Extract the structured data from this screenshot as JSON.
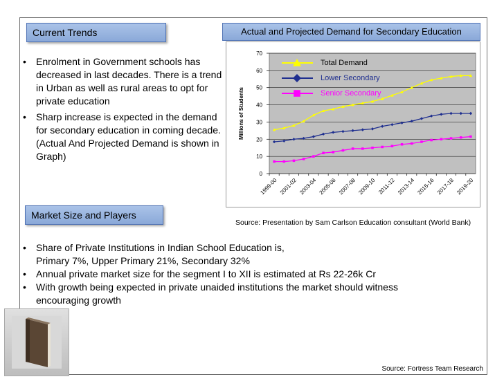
{
  "trends": {
    "label": "Current Trends",
    "bullets": [
      "Enrolment in Government schools has decreased in last decades. There is a trend in Urban as well as rural areas to opt for private education",
      "Sharp increase is expected in the demand for secondary education in coming decade.  (Actual And Projected Demand is shown in Graph)"
    ]
  },
  "market": {
    "label": "Market Size and Players",
    "bullets": [
      [
        "Share of Private Institutions in Indian School Education is,",
        "Primary 7%, Upper Primary 21%,  Secondary 32%"
      ],
      [
        "Annual private market size for the segment I to XII  is estimated at Rs 22-26k Cr"
      ],
      [
        "With growth being expected in private unaided institutions the market should witness",
        "encouraging growth"
      ]
    ]
  },
  "chart_heading": "Actual and Projected Demand for Secondary Education",
  "chart_source": "Source: Presentation by Sam Carlson Education consultant (World Bank)",
  "footer_source": "Source: Fortress Team Research",
  "icons": {
    "book": "book-icon"
  },
  "colors": {
    "label_bg": "#9bb7e2",
    "total": "#ffff00",
    "lower": "#1f2f8f",
    "senior": "#ff00ff",
    "plot_bg": "#c0c0c0"
  },
  "chart_data": {
    "type": "line",
    "title": "",
    "xlabel": "",
    "ylabel": "Millions of Students",
    "ylim": [
      0,
      70
    ],
    "yticks": [
      0,
      10,
      20,
      30,
      40,
      50,
      60,
      70
    ],
    "tick_labels": [
      "1999-00",
      "2001-02",
      "2003-04",
      "2005-06",
      "2007-08",
      "2009-10",
      "2011-12",
      "2013-14",
      "2015-16",
      "2017-18",
      "2019-20"
    ],
    "x": [
      "1999-00",
      "2000-01",
      "2001-02",
      "2002-03",
      "2003-04",
      "2004-05",
      "2005-06",
      "2006-07",
      "2007-08",
      "2008-09",
      "2009-10",
      "2010-11",
      "2011-12",
      "2012-13",
      "2013-14",
      "2014-15",
      "2015-16",
      "2016-17",
      "2017-18",
      "2018-19",
      "2019-20"
    ],
    "series": [
      {
        "name": "Total Demand",
        "color": "#ffff00",
        "marker": "triangle",
        "values": [
          25.5,
          26.5,
          28,
          30.5,
          34,
          36.5,
          37.5,
          39,
          40,
          41,
          42,
          43.5,
          45.5,
          47.5,
          50,
          52.5,
          54.5,
          55.5,
          56.5,
          57,
          57
        ]
      },
      {
        "name": "Lower Secondary",
        "color": "#1f2f8f",
        "marker": "diamond",
        "values": [
          18.5,
          19,
          20,
          20.5,
          21.5,
          23,
          24,
          24.5,
          25,
          25.5,
          26,
          27.5,
          28.5,
          29.5,
          30.5,
          32,
          33.5,
          34.5,
          35,
          35,
          35
        ]
      },
      {
        "name": "Senior Secondary",
        "color": "#ff00ff",
        "marker": "square",
        "values": [
          7,
          7,
          7.5,
          8.5,
          10,
          12,
          12.5,
          13.5,
          14.5,
          14.5,
          15,
          15.5,
          16,
          17,
          17.5,
          18.5,
          19.5,
          20,
          20.5,
          21,
          21.5
        ]
      }
    ],
    "legend": "inside-top"
  }
}
